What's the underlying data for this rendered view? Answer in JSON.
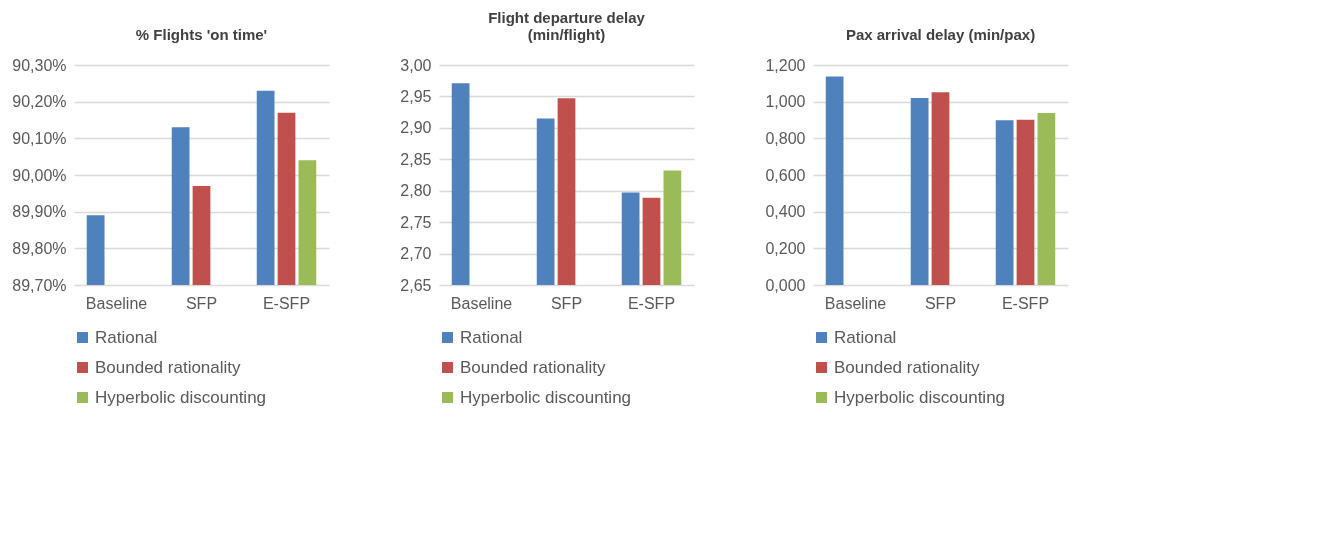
{
  "chart_data": [
    {
      "type": "bar",
      "title": "% Flights 'on time'",
      "categories": [
        "Baseline",
        "SFP",
        "E-SFP"
      ],
      "series": [
        {
          "name": "Rational",
          "color": "#4f81bd",
          "values": [
            89.89,
            90.13,
            90.23
          ]
        },
        {
          "name": "Bounded rationality",
          "color": "#c0504d",
          "values": [
            null,
            89.97,
            90.17
          ]
        },
        {
          "name": "Hyperbolic discounting",
          "color": "#9bbb59",
          "values": [
            null,
            null,
            90.04
          ]
        }
      ],
      "ylim": [
        89.7,
        90.3
      ],
      "yticks": [
        {
          "value": 89.7,
          "label": "89,70%"
        },
        {
          "value": 89.8,
          "label": "89,80%"
        },
        {
          "value": 89.9,
          "label": "89,90%"
        },
        {
          "value": 90.0,
          "label": "90,00%"
        },
        {
          "value": 90.1,
          "label": "90,10%"
        },
        {
          "value": 90.2,
          "label": "90,20%"
        },
        {
          "value": 90.3,
          "label": "90,30%"
        }
      ],
      "grid": "y",
      "legend": "bottom"
    },
    {
      "type": "bar",
      "title": "Flight departure delay\n(min/flight)",
      "categories": [
        "Baseline",
        "SFP",
        "E-SFP"
      ],
      "series": [
        {
          "name": "Rational",
          "color": "#4f81bd",
          "values": [
            2.971,
            2.915,
            2.797
          ]
        },
        {
          "name": "Bounded rationality",
          "color": "#c0504d",
          "values": [
            null,
            2.947,
            2.789
          ]
        },
        {
          "name": "Hyperbolic discounting",
          "color": "#9bbb59",
          "values": [
            null,
            null,
            2.832
          ]
        }
      ],
      "ylim": [
        2.65,
        3.0
      ],
      "yticks": [
        {
          "value": 2.65,
          "label": "2,65"
        },
        {
          "value": 2.7,
          "label": "2,70"
        },
        {
          "value": 2.75,
          "label": "2,75"
        },
        {
          "value": 2.8,
          "label": "2,80"
        },
        {
          "value": 2.85,
          "label": "2,85"
        },
        {
          "value": 2.9,
          "label": "2,90"
        },
        {
          "value": 2.95,
          "label": "2,95"
        },
        {
          "value": 3.0,
          "label": "3,00"
        }
      ],
      "grid": "y",
      "legend": "bottom"
    },
    {
      "type": "bar",
      "title": "Pax arrival delay (min/pax)",
      "categories": [
        "Baseline",
        "SFP",
        "E-SFP"
      ],
      "series": [
        {
          "name": "Rational",
          "color": "#4f81bd",
          "values": [
            1.137,
            1.02,
            0.898
          ]
        },
        {
          "name": "Bounded rationality",
          "color": "#c0504d",
          "values": [
            null,
            1.052,
            0.901
          ]
        },
        {
          "name": "Hyperbolic discounting",
          "color": "#9bbb59",
          "values": [
            null,
            null,
            0.938
          ]
        }
      ],
      "ylim": [
        0,
        1.2
      ],
      "yticks": [
        {
          "value": 0,
          "label": "0,000"
        },
        {
          "value": 0.2,
          "label": "0,200"
        },
        {
          "value": 0.4,
          "label": "0,400"
        },
        {
          "value": 0.6,
          "label": "0,600"
        },
        {
          "value": 0.8,
          "label": "0,800"
        },
        {
          "value": 1.0,
          "label": "1,000"
        },
        {
          "value": 1.2,
          "label": "1,200"
        }
      ],
      "grid": "y",
      "legend": "bottom"
    }
  ]
}
